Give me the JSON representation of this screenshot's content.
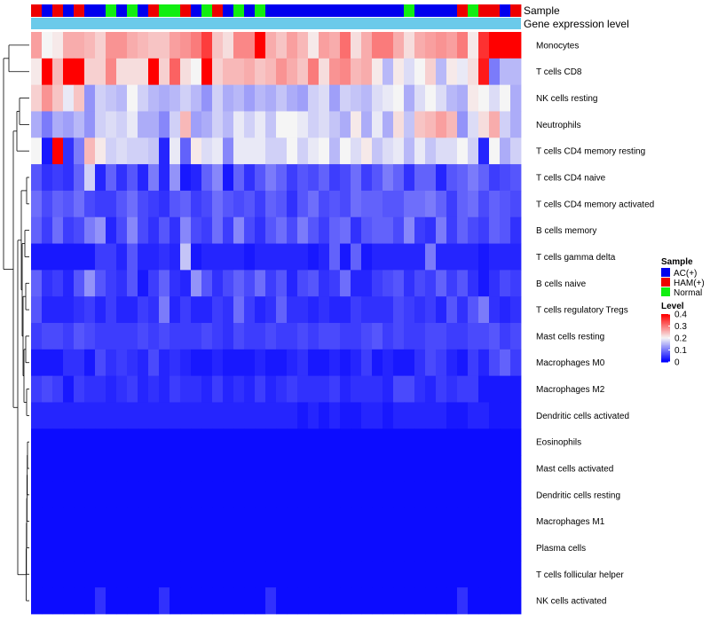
{
  "chart_data": {
    "type": "heatmap",
    "title": "",
    "annotation_tracks": [
      {
        "name": "Sample",
        "label": "Sample"
      },
      {
        "name": "Gene expression level",
        "label": "Gene expression level",
        "color": "#6bcaea"
      }
    ],
    "sample_groups": [
      {
        "name": "AC(+)",
        "color": "#0000ee"
      },
      {
        "name": "HAM(+)",
        "color": "#ee0000"
      },
      {
        "name": "Normal",
        "color": "#11ee11"
      }
    ],
    "sample_annotation": [
      "HAM(+)",
      "AC(+)",
      "HAM(+)",
      "AC(+)",
      "HAM(+)",
      "AC(+)",
      "AC(+)",
      "Normal",
      "AC(+)",
      "Normal",
      "AC(+)",
      "HAM(+)",
      "Normal",
      "Normal",
      "HAM(+)",
      "AC(+)",
      "Normal",
      "HAM(+)",
      "AC(+)",
      "Normal",
      "AC(+)",
      "Normal",
      "AC(+)",
      "AC(+)",
      "AC(+)",
      "AC(+)",
      "AC(+)",
      "AC(+)",
      "AC(+)",
      "AC(+)",
      "AC(+)",
      "AC(+)",
      "AC(+)",
      "AC(+)",
      "AC(+)",
      "Normal",
      "AC(+)",
      "AC(+)",
      "AC(+)",
      "AC(+)",
      "HAM(+)",
      "Normal",
      "HAM(+)",
      "HAM(+)",
      "AC(+)",
      "HAM(+)"
    ],
    "rows": [
      "Monocytes",
      "T cells CD8",
      "NK cells resting",
      "Neutrophils",
      "T cells CD4 memory resting",
      "T cells CD4 naive",
      "T cells CD4 memory activated",
      "B cells memory",
      "T cells gamma delta",
      "B cells naive",
      "T cells regulatory  Tregs",
      "Mast cells resting",
      "Macrophages M0",
      "Macrophages M2",
      "Dendritic cells activated",
      "Eosinophils",
      "Mast cells activated",
      "Dendritic cells resting",
      "Macrophages M1",
      "Plasma cells",
      "T cells follicular helper",
      "NK cells activated"
    ],
    "values": [
      [
        0.27,
        0.2,
        0.21,
        0.26,
        0.26,
        0.25,
        0.23,
        0.28,
        0.28,
        0.26,
        0.25,
        0.24,
        0.24,
        0.27,
        0.28,
        0.3,
        0.35,
        0.24,
        0.22,
        0.29,
        0.29,
        0.4,
        0.26,
        0.24,
        0.27,
        0.25,
        0.21,
        0.27,
        0.26,
        0.31,
        0.22,
        0.26,
        0.3,
        0.3,
        0.26,
        0.22,
        0.26,
        0.27,
        0.28,
        0.27,
        0.3,
        0.21,
        0.36,
        0.4,
        0.4,
        0.4
      ],
      [
        0.21,
        0.4,
        0.25,
        0.4,
        0.4,
        0.23,
        0.23,
        0.29,
        0.22,
        0.22,
        0.22,
        0.4,
        0.23,
        0.32,
        0.22,
        0.2,
        0.4,
        0.23,
        0.25,
        0.25,
        0.26,
        0.24,
        0.25,
        0.28,
        0.26,
        0.24,
        0.3,
        0.22,
        0.28,
        0.29,
        0.25,
        0.26,
        0.21,
        0.15,
        0.21,
        0.18,
        0.2,
        0.23,
        0.15,
        0.21,
        0.19,
        0.22,
        0.38,
        0.1,
        0.15,
        0.15
      ],
      [
        0.23,
        0.28,
        0.24,
        0.19,
        0.24,
        0.12,
        0.17,
        0.16,
        0.15,
        0.2,
        0.17,
        0.15,
        0.14,
        0.15,
        0.17,
        0.15,
        0.12,
        0.17,
        0.14,
        0.15,
        0.13,
        0.15,
        0.14,
        0.16,
        0.14,
        0.13,
        0.17,
        0.18,
        0.13,
        0.17,
        0.16,
        0.15,
        0.18,
        0.19,
        0.2,
        0.14,
        0.18,
        0.2,
        0.18,
        0.15,
        0.14,
        0.21,
        0.2,
        0.18,
        0.2,
        0.14
      ],
      [
        0.14,
        0.1,
        0.14,
        0.13,
        0.15,
        0.12,
        0.17,
        0.18,
        0.17,
        0.19,
        0.14,
        0.14,
        0.11,
        0.17,
        0.25,
        0.13,
        0.14,
        0.17,
        0.15,
        0.19,
        0.17,
        0.19,
        0.16,
        0.2,
        0.2,
        0.19,
        0.17,
        0.18,
        0.16,
        0.14,
        0.21,
        0.14,
        0.19,
        0.14,
        0.22,
        0.16,
        0.24,
        0.25,
        0.27,
        0.25,
        0.12,
        0.18,
        0.22,
        0.26,
        0.17,
        0.14
      ],
      [
        0.2,
        0.02,
        0.4,
        0.04,
        0.1,
        0.25,
        0.21,
        0.17,
        0.18,
        0.17,
        0.17,
        0.16,
        0.03,
        0.19,
        0.08,
        0.21,
        0.18,
        0.19,
        0.11,
        0.19,
        0.19,
        0.19,
        0.17,
        0.17,
        0.2,
        0.17,
        0.19,
        0.2,
        0.15,
        0.2,
        0.18,
        0.21,
        0.16,
        0.18,
        0.19,
        0.15,
        0.19,
        0.16,
        0.18,
        0.18,
        0.2,
        0.17,
        0.03,
        0.2,
        0.14,
        0.17
      ],
      [
        0.07,
        0.04,
        0.05,
        0.04,
        0.08,
        0.17,
        0.03,
        0.08,
        0.04,
        0.07,
        0.03,
        0.1,
        0.03,
        0.12,
        0.02,
        0.03,
        0.08,
        0.11,
        0.02,
        0.08,
        0.04,
        0.07,
        0.1,
        0.08,
        0.05,
        0.07,
        0.06,
        0.08,
        0.05,
        0.06,
        0.09,
        0.05,
        0.07,
        0.1,
        0.08,
        0.04,
        0.08,
        0.08,
        0.03,
        0.07,
        0.08,
        0.1,
        0.08,
        0.05,
        0.06,
        0.07
      ],
      [
        0.09,
        0.06,
        0.08,
        0.07,
        0.09,
        0.06,
        0.05,
        0.05,
        0.07,
        0.09,
        0.06,
        0.05,
        0.04,
        0.07,
        0.08,
        0.05,
        0.06,
        0.09,
        0.07,
        0.06,
        0.07,
        0.05,
        0.08,
        0.07,
        0.04,
        0.07,
        0.09,
        0.06,
        0.07,
        0.06,
        0.09,
        0.08,
        0.08,
        0.07,
        0.07,
        0.09,
        0.09,
        0.1,
        0.08,
        0.05,
        0.08,
        0.09,
        0.06,
        0.08,
        0.07,
        0.06
      ],
      [
        0.08,
        0.05,
        0.09,
        0.05,
        0.06,
        0.1,
        0.12,
        0.03,
        0.06,
        0.11,
        0.06,
        0.04,
        0.07,
        0.04,
        0.11,
        0.06,
        0.05,
        0.09,
        0.05,
        0.11,
        0.06,
        0.04,
        0.07,
        0.09,
        0.06,
        0.1,
        0.07,
        0.05,
        0.08,
        0.09,
        0.04,
        0.07,
        0.08,
        0.08,
        0.06,
        0.11,
        0.05,
        0.04,
        0.1,
        0.05,
        0.08,
        0.06,
        0.05,
        0.08,
        0.07,
        0.04
      ],
      [
        0.02,
        0.02,
        0.02,
        0.02,
        0.02,
        0.02,
        0.05,
        0.05,
        0.03,
        0.07,
        0.03,
        0.03,
        0.04,
        0.03,
        0.16,
        0.02,
        0.03,
        0.03,
        0.03,
        0.03,
        0.02,
        0.03,
        0.03,
        0.03,
        0.03,
        0.03,
        0.02,
        0.03,
        0.08,
        0.02,
        0.08,
        0.02,
        0.03,
        0.03,
        0.03,
        0.03,
        0.03,
        0.1,
        0.03,
        0.03,
        0.03,
        0.03,
        0.02,
        0.03,
        0.03,
        0.03
      ],
      [
        0.08,
        0.04,
        0.05,
        0.03,
        0.07,
        0.12,
        0.07,
        0.05,
        0.04,
        0.07,
        0.02,
        0.05,
        0.08,
        0.04,
        0.03,
        0.12,
        0.07,
        0.04,
        0.06,
        0.08,
        0.06,
        0.09,
        0.05,
        0.07,
        0.03,
        0.06,
        0.07,
        0.04,
        0.05,
        0.09,
        0.03,
        0.03,
        0.05,
        0.06,
        0.07,
        0.04,
        0.06,
        0.05,
        0.08,
        0.05,
        0.07,
        0.04,
        0.02,
        0.04,
        0.06,
        0.05
      ],
      [
        0.07,
        0.03,
        0.03,
        0.03,
        0.04,
        0.05,
        0.03,
        0.05,
        0.03,
        0.03,
        0.05,
        0.04,
        0.1,
        0.03,
        0.05,
        0.03,
        0.03,
        0.05,
        0.04,
        0.09,
        0.05,
        0.03,
        0.04,
        0.08,
        0.04,
        0.04,
        0.03,
        0.04,
        0.03,
        0.03,
        0.05,
        0.04,
        0.04,
        0.04,
        0.06,
        0.05,
        0.04,
        0.05,
        0.03,
        0.07,
        0.04,
        0.07,
        0.1,
        0.04,
        0.03,
        0.04
      ],
      [
        0.05,
        0.06,
        0.06,
        0.05,
        0.07,
        0.06,
        0.05,
        0.05,
        0.05,
        0.05,
        0.06,
        0.05,
        0.06,
        0.05,
        0.05,
        0.05,
        0.06,
        0.05,
        0.04,
        0.06,
        0.05,
        0.05,
        0.06,
        0.05,
        0.05,
        0.06,
        0.05,
        0.06,
        0.06,
        0.05,
        0.05,
        0.06,
        0.07,
        0.05,
        0.06,
        0.05,
        0.05,
        0.06,
        0.06,
        0.05,
        0.05,
        0.06,
        0.06,
        0.07,
        0.05,
        0.06
      ],
      [
        0.02,
        0.02,
        0.02,
        0.04,
        0.04,
        0.02,
        0.06,
        0.04,
        0.05,
        0.04,
        0.03,
        0.06,
        0.03,
        0.04,
        0.03,
        0.02,
        0.02,
        0.03,
        0.02,
        0.02,
        0.02,
        0.03,
        0.02,
        0.02,
        0.03,
        0.04,
        0.02,
        0.02,
        0.03,
        0.02,
        0.03,
        0.05,
        0.02,
        0.03,
        0.02,
        0.02,
        0.04,
        0.06,
        0.05,
        0.03,
        0.02,
        0.05,
        0.03,
        0.06,
        0.08,
        0.05
      ],
      [
        0.05,
        0.06,
        0.05,
        0.02,
        0.05,
        0.04,
        0.04,
        0.03,
        0.04,
        0.05,
        0.03,
        0.04,
        0.03,
        0.05,
        0.04,
        0.04,
        0.03,
        0.05,
        0.03,
        0.04,
        0.03,
        0.05,
        0.03,
        0.04,
        0.05,
        0.04,
        0.04,
        0.04,
        0.05,
        0.03,
        0.04,
        0.04,
        0.04,
        0.03,
        0.06,
        0.06,
        0.04,
        0.03,
        0.05,
        0.04,
        0.05,
        0.05,
        0.02,
        0.02,
        0.02,
        0.02
      ],
      [
        0.03,
        0.03,
        0.03,
        0.03,
        0.03,
        0.03,
        0.03,
        0.03,
        0.03,
        0.03,
        0.03,
        0.03,
        0.03,
        0.03,
        0.03,
        0.03,
        0.03,
        0.03,
        0.03,
        0.03,
        0.03,
        0.03,
        0.03,
        0.03,
        0.03,
        0.02,
        0.03,
        0.02,
        0.03,
        0.02,
        0.02,
        0.03,
        0.03,
        0.02,
        0.03,
        0.03,
        0.03,
        0.03,
        0.03,
        0.02,
        0.02,
        0.03,
        0.03,
        0.02,
        0.02,
        0.02
      ],
      [
        0.01,
        0.01,
        0.01,
        0.01,
        0.01,
        0.01,
        0.01,
        0.01,
        0.01,
        0.01,
        0.01,
        0.01,
        0.01,
        0.01,
        0.01,
        0.01,
        0.01,
        0.01,
        0.01,
        0.01,
        0.01,
        0.01,
        0.01,
        0.01,
        0.01,
        0.01,
        0.01,
        0.01,
        0.01,
        0.01,
        0.01,
        0.01,
        0.01,
        0.01,
        0.01,
        0.01,
        0.01,
        0.01,
        0.01,
        0.01,
        0.01,
        0.01,
        0.01,
        0.01,
        0.01,
        0.01
      ],
      [
        0.01,
        0.01,
        0.01,
        0.01,
        0.01,
        0.01,
        0.01,
        0.01,
        0.01,
        0.01,
        0.01,
        0.01,
        0.01,
        0.01,
        0.01,
        0.01,
        0.01,
        0.01,
        0.01,
        0.01,
        0.01,
        0.01,
        0.01,
        0.01,
        0.01,
        0.01,
        0.01,
        0.01,
        0.01,
        0.01,
        0.01,
        0.01,
        0.01,
        0.01,
        0.01,
        0.01,
        0.01,
        0.01,
        0.01,
        0.01,
        0.01,
        0.01,
        0.01,
        0.01,
        0.01,
        0.01
      ],
      [
        0.01,
        0.01,
        0.01,
        0.01,
        0.01,
        0.01,
        0.01,
        0.01,
        0.01,
        0.01,
        0.01,
        0.01,
        0.01,
        0.01,
        0.01,
        0.01,
        0.01,
        0.01,
        0.01,
        0.01,
        0.01,
        0.01,
        0.01,
        0.01,
        0.01,
        0.01,
        0.01,
        0.01,
        0.01,
        0.01,
        0.01,
        0.01,
        0.01,
        0.01,
        0.01,
        0.01,
        0.01,
        0.01,
        0.01,
        0.01,
        0.01,
        0.01,
        0.01,
        0.01,
        0.01,
        0.01
      ],
      [
        0.01,
        0.01,
        0.01,
        0.01,
        0.01,
        0.01,
        0.01,
        0.01,
        0.01,
        0.01,
        0.01,
        0.01,
        0.01,
        0.01,
        0.01,
        0.01,
        0.01,
        0.01,
        0.01,
        0.01,
        0.01,
        0.01,
        0.01,
        0.01,
        0.01,
        0.01,
        0.01,
        0.01,
        0.01,
        0.01,
        0.01,
        0.01,
        0.01,
        0.01,
        0.01,
        0.01,
        0.01,
        0.01,
        0.01,
        0.01,
        0.01,
        0.01,
        0.01,
        0.01,
        0.01,
        0.01
      ],
      [
        0.01,
        0.01,
        0.01,
        0.01,
        0.01,
        0.01,
        0.01,
        0.01,
        0.01,
        0.01,
        0.01,
        0.01,
        0.01,
        0.01,
        0.01,
        0.01,
        0.01,
        0.01,
        0.01,
        0.01,
        0.01,
        0.01,
        0.01,
        0.01,
        0.01,
        0.01,
        0.01,
        0.01,
        0.01,
        0.01,
        0.01,
        0.01,
        0.01,
        0.01,
        0.01,
        0.01,
        0.01,
        0.01,
        0.01,
        0.01,
        0.01,
        0.01,
        0.01,
        0.01,
        0.01,
        0.01
      ],
      [
        0.01,
        0.01,
        0.01,
        0.01,
        0.01,
        0.01,
        0.01,
        0.01,
        0.01,
        0.01,
        0.01,
        0.01,
        0.01,
        0.01,
        0.01,
        0.01,
        0.01,
        0.01,
        0.01,
        0.01,
        0.01,
        0.01,
        0.01,
        0.01,
        0.01,
        0.01,
        0.01,
        0.01,
        0.01,
        0.01,
        0.01,
        0.01,
        0.01,
        0.01,
        0.01,
        0.01,
        0.01,
        0.01,
        0.01,
        0.01,
        0.01,
        0.01,
        0.01,
        0.01,
        0.01,
        0.01
      ],
      [
        0.01,
        0.01,
        0.01,
        0.01,
        0.01,
        0.01,
        0.04,
        0.01,
        0.01,
        0.01,
        0.01,
        0.01,
        0.04,
        0.01,
        0.01,
        0.01,
        0.01,
        0.01,
        0.01,
        0.01,
        0.01,
        0.01,
        0.04,
        0.01,
        0.01,
        0.01,
        0.01,
        0.01,
        0.01,
        0.01,
        0.01,
        0.01,
        0.01,
        0.01,
        0.01,
        0.01,
        0.01,
        0.01,
        0.01,
        0.01,
        0.04,
        0.01,
        0.01,
        0.01,
        0.01,
        0.01
      ]
    ],
    "color_scale": {
      "min": 0,
      "mid": 0.2,
      "max": 0.4,
      "low": "#0000ff",
      "midColor": "#f5f5f5",
      "high": "#ff0000"
    },
    "legend": {
      "sample_title": "Sample",
      "level_title": "Level",
      "level_ticks": [
        "0.4",
        "0.3",
        "0.2",
        "0.1",
        "0"
      ],
      "level_values": [
        0.4,
        0.3,
        0.2,
        0.1,
        0
      ],
      "placement": "right"
    },
    "row_dendrogram": true
  }
}
